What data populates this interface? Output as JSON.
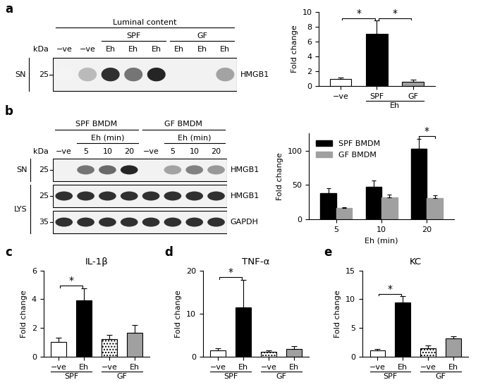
{
  "chart_data": [
    {
      "panel": "a",
      "type": "bar",
      "categories": [
        "−ve",
        "SPF",
        "GF"
      ],
      "values": [
        1.0,
        7.0,
        0.6
      ],
      "errors": [
        0.15,
        1.8,
        0.25
      ],
      "colors": [
        "#ffffff",
        "#000000",
        "#a0a0a0"
      ],
      "ylabel": "Fold change",
      "ylim": [
        0,
        10
      ],
      "yticks": [
        0,
        2,
        4,
        6,
        8,
        10
      ],
      "groups": [
        {
          "label": "Eh",
          "categories": [
            1,
            2
          ]
        }
      ],
      "significance": [
        {
          "between": [
            0,
            1
          ],
          "label": "*"
        },
        {
          "between": [
            1,
            2
          ],
          "label": "*"
        }
      ]
    },
    {
      "panel": "b",
      "type": "bar",
      "categories": [
        "5",
        "10",
        "20"
      ],
      "series": [
        {
          "name": "SPF BMDM",
          "color": "#000000",
          "values": [
            38,
            47,
            103
          ],
          "errors": [
            7,
            10,
            14
          ]
        },
        {
          "name": "GF BMDM",
          "color": "#a0a0a0",
          "values": [
            17,
            32,
            31
          ],
          "errors": [
            1,
            4,
            4
          ]
        }
      ],
      "xlabel": "Eh (min)",
      "ylabel": "Fold change",
      "ylim": [
        0,
        125
      ],
      "yticks": [
        0,
        50,
        100
      ],
      "legend": "upper left",
      "significance": [
        {
          "category": 2,
          "label": "*"
        }
      ]
    },
    {
      "panel": "c",
      "type": "bar",
      "title": "IL-1β",
      "categories": [
        "−ve",
        "Eh",
        "−ve",
        "Eh"
      ],
      "values": [
        1.05,
        3.9,
        1.2,
        1.65
      ],
      "errors": [
        0.25,
        0.85,
        0.3,
        0.55
      ],
      "colors": [
        "#ffffff",
        "#000000",
        "#ffffff",
        "#a0a0a0"
      ],
      "ylabel": "Fold change",
      "ylim": [
        0,
        6
      ],
      "yticks": [
        0,
        2,
        4,
        6
      ],
      "groups": [
        {
          "label": "SPF",
          "categories": [
            0,
            1
          ]
        },
        {
          "label": "GF",
          "categories": [
            2,
            3
          ]
        }
      ],
      "significance": [
        {
          "between": [
            0,
            1
          ],
          "label": "*"
        }
      ]
    },
    {
      "panel": "d",
      "type": "bar",
      "title": "TNF-α",
      "categories": [
        "−ve",
        "Eh",
        "−ve",
        "Eh"
      ],
      "values": [
        1.4,
        11.5,
        1.1,
        1.8
      ],
      "errors": [
        0.5,
        6.3,
        0.3,
        0.6
      ],
      "colors": [
        "#ffffff",
        "#000000",
        "#ffffff",
        "#a0a0a0"
      ],
      "ylabel": "Fold change",
      "ylim": [
        0,
        20
      ],
      "yticks": [
        0,
        10,
        20
      ],
      "groups": [
        {
          "label": "SPF",
          "categories": [
            0,
            1
          ]
        },
        {
          "label": "GF",
          "categories": [
            2,
            3
          ]
        }
      ],
      "significance": [
        {
          "between": [
            0,
            1
          ],
          "label": "*"
        }
      ]
    },
    {
      "panel": "e",
      "type": "bar",
      "title": "KC",
      "categories": [
        "−ve",
        "Eh",
        "−ve",
        "Eh"
      ],
      "values": [
        1.1,
        9.4,
        1.5,
        3.2
      ],
      "errors": [
        0.3,
        1.1,
        0.5,
        0.4
      ],
      "colors": [
        "#ffffff",
        "#000000",
        "#ffffff",
        "#a0a0a0"
      ],
      "ylabel": "Fold change",
      "ylim": [
        0,
        15
      ],
      "yticks": [
        0,
        5,
        10,
        15
      ],
      "groups": [
        {
          "label": "SPF",
          "categories": [
            0,
            1
          ]
        },
        {
          "label": "GF",
          "categories": [
            2,
            3
          ]
        }
      ],
      "significance": [
        {
          "between": [
            0,
            1
          ],
          "label": "*"
        }
      ]
    }
  ],
  "blots": [
    {
      "kda_label": "kDa",
      "lane_labels": [
        "−ve",
        "−ve",
        "Eh",
        "Eh",
        "Eh",
        "Eh",
        "Eh",
        "Eh"
      ],
      "header_rows": [
        [
          {
            "label": "SPF",
            "lanes": [
              2,
              4
            ]
          },
          {
            "label": "GF",
            "lanes": [
              5,
              7
            ]
          }
        ],
        [
          {
            "label": "Luminal content",
            "lanes": [
              0,
              7
            ]
          }
        ]
      ],
      "rows": [
        {
          "protein": "HMGB1",
          "kda": 25,
          "band_intensity": [
            0.05,
            0.3,
            0.9,
            0.6,
            0.95,
            0.0,
            0.0,
            0.4
          ]
        }
      ],
      "row_groups": [
        {
          "label": "SN",
          "rows": [
            0,
            0
          ]
        }
      ]
    },
    {
      "kda_label": "kDa",
      "lane_labels": [
        "−ve",
        "5",
        "10",
        "20",
        "−ve",
        "5",
        "10",
        "20"
      ],
      "header_rows": [
        [
          {
            "label": "Eh (min)",
            "lanes": [
              1,
              3
            ]
          },
          {
            "label": "Eh (min)",
            "lanes": [
              5,
              7
            ]
          }
        ],
        [
          {
            "label": "SPF BMDM",
            "lanes": [
              0,
              3
            ]
          },
          {
            "label": "GF BMDM",
            "lanes": [
              4,
              7
            ]
          }
        ]
      ],
      "rows": [
        {
          "protein": "HMGB1",
          "kda": 25,
          "band_intensity": [
            0.0,
            0.6,
            0.65,
            0.95,
            0.0,
            0.4,
            0.55,
            0.45
          ]
        },
        {
          "protein": "HMGB1",
          "kda": 25,
          "band_intensity": [
            0.9,
            0.9,
            0.9,
            0.9,
            0.9,
            0.9,
            0.9,
            0.9
          ]
        },
        {
          "protein": "GAPDH",
          "kda": 35,
          "band_intensity": [
            0.9,
            0.9,
            0.9,
            0.9,
            0.9,
            0.9,
            0.9,
            0.9
          ]
        }
      ],
      "row_groups": [
        {
          "label": "SN",
          "rows": [
            0,
            0
          ]
        },
        {
          "label": "LYS",
          "rows": [
            1,
            2
          ]
        }
      ]
    }
  ]
}
